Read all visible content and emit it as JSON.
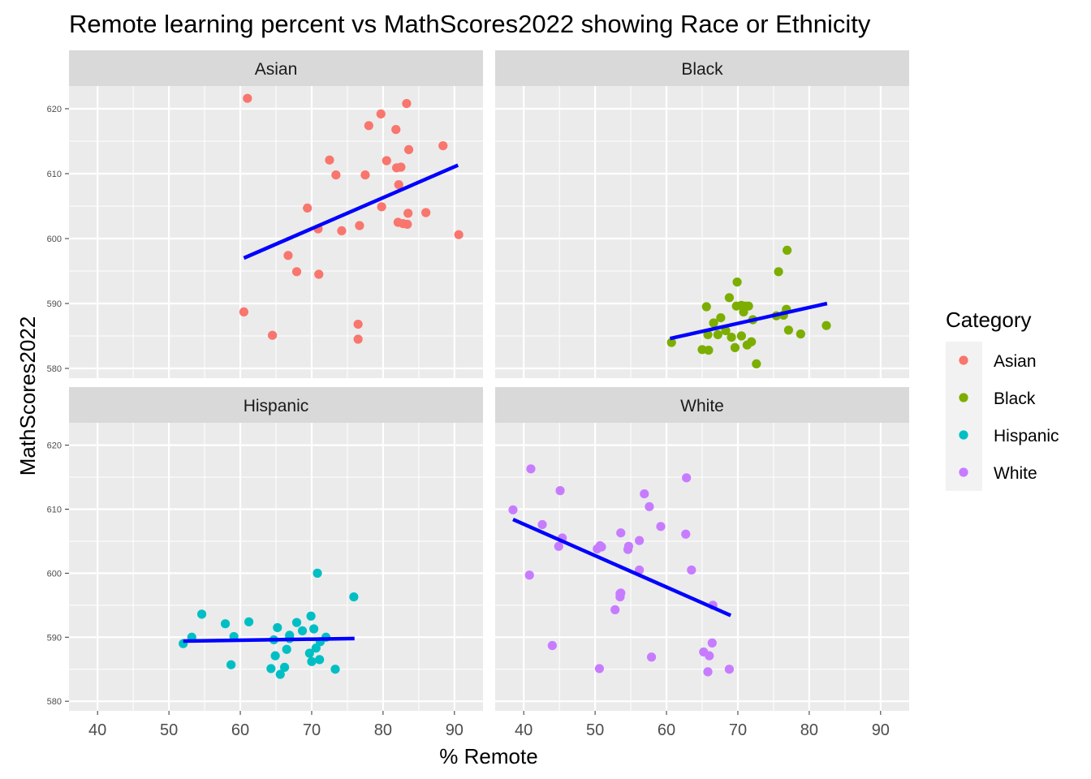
{
  "chart_data": {
    "type": "scatter",
    "title": "Remote learning percent vs MathScores2022 showing Race or Ethnicity",
    "xlabel": "% Remote",
    "ylabel": "MathScores2022",
    "xlim": [
      36,
      94
    ],
    "ylim": [
      578.5,
      623.5
    ],
    "xticks": [
      40,
      50,
      60,
      70,
      80,
      90
    ],
    "yticks": [
      580,
      590,
      600,
      610,
      620
    ],
    "grid": true,
    "legend": {
      "title": "Category",
      "position": "right"
    },
    "fit_line_color": "#0000ff",
    "panels": [
      {
        "name": "Asian",
        "color": "#f8766d",
        "fit": {
          "x": [
            60.5,
            90.5
          ],
          "y": [
            597.0,
            611.3
          ]
        },
        "x": [
          61.0,
          60.5,
          64.5,
          66.7,
          67.9,
          69.4,
          70.9,
          71.0,
          72.5,
          73.4,
          74.2,
          76.5,
          76.5,
          76.7,
          77.5,
          78.0,
          79.7,
          79.8,
          80.5,
          81.8,
          81.9,
          82.1,
          82.2,
          82.5,
          82.8,
          83.3,
          83.4,
          83.5,
          83.6,
          86.0,
          88.4,
          90.6
        ],
        "y": [
          621.6,
          588.7,
          585.1,
          597.4,
          594.9,
          604.7,
          601.5,
          594.5,
          612.1,
          609.8,
          601.2,
          586.8,
          584.5,
          602.0,
          609.8,
          617.4,
          619.2,
          604.9,
          612.0,
          616.8,
          610.9,
          602.5,
          608.3,
          611.0,
          602.3,
          620.8,
          602.2,
          603.9,
          613.7,
          604.0,
          614.3,
          600.6
        ]
      },
      {
        "name": "Black",
        "color": "#7cae00",
        "fit": {
          "x": [
            60.5,
            82.5
          ],
          "y": [
            584.6,
            590.0
          ]
        },
        "x": [
          60.7,
          65.0,
          65.6,
          65.8,
          65.9,
          66.6,
          67.2,
          67.6,
          68.3,
          68.8,
          69.1,
          69.6,
          69.8,
          69.9,
          70.5,
          70.5,
          70.8,
          71.1,
          71.3,
          71.5,
          71.9,
          72.1,
          72.6,
          75.4,
          75.7,
          76.4,
          76.8,
          76.9,
          77.1,
          78.8,
          82.4
        ],
        "y": [
          584.0,
          582.9,
          589.5,
          585.2,
          582.8,
          587.0,
          585.2,
          587.8,
          585.8,
          590.9,
          584.8,
          583.2,
          589.6,
          593.3,
          589.7,
          585.0,
          588.7,
          589.6,
          583.6,
          589.6,
          584.1,
          587.5,
          580.7,
          588.1,
          594.9,
          588.2,
          589.1,
          598.2,
          585.9,
          585.3,
          586.6
        ]
      },
      {
        "name": "Hispanic",
        "color": "#00bfc4",
        "fit": {
          "x": [
            52.0,
            76.0
          ],
          "y": [
            589.4,
            589.8
          ]
        },
        "x": [
          52.0,
          53.2,
          54.6,
          57.9,
          58.7,
          59.1,
          61.2,
          64.3,
          64.7,
          64.9,
          65.2,
          65.6,
          66.2,
          66.5,
          66.9,
          66.9,
          67.9,
          68.7,
          69.7,
          69.9,
          70.0,
          70.3,
          70.6,
          70.8,
          71.1,
          71.2,
          72.0,
          73.3,
          75.9
        ],
        "y": [
          589.0,
          590.0,
          593.6,
          592.1,
          585.7,
          590.1,
          592.4,
          585.1,
          589.6,
          587.1,
          591.5,
          584.2,
          585.3,
          588.1,
          590.3,
          589.8,
          592.3,
          591.0,
          587.5,
          593.3,
          586.2,
          591.3,
          588.3,
          600.0,
          586.5,
          589.3,
          590.0,
          585.0,
          596.3
        ]
      },
      {
        "name": "White",
        "color": "#c77cff",
        "fit": {
          "x": [
            38.5,
            69.0
          ],
          "y": [
            608.4,
            593.4
          ]
        },
        "x": [
          38.5,
          40.8,
          41.0,
          42.6,
          44.0,
          44.9,
          45.1,
          45.4,
          50.3,
          50.6,
          50.7,
          50.9,
          52.8,
          53.5,
          53.5,
          53.6,
          53.6,
          54.6,
          54.7,
          56.2,
          56.2,
          56.9,
          57.6,
          57.9,
          59.2,
          62.7,
          62.8,
          63.5,
          65.2,
          65.8,
          66.0,
          66.4,
          66.5,
          68.8
        ],
        "y": [
          609.9,
          599.7,
          616.3,
          607.6,
          588.7,
          604.2,
          612.9,
          605.5,
          603.8,
          585.1,
          604.3,
          604.1,
          594.3,
          596.8,
          596.3,
          606.3,
          596.9,
          603.7,
          604.2,
          605.1,
          600.5,
          612.4,
          610.4,
          586.9,
          607.3,
          606.1,
          614.9,
          600.5,
          587.7,
          584.6,
          587.1,
          589.1,
          595.0,
          585.0
        ]
      }
    ]
  }
}
